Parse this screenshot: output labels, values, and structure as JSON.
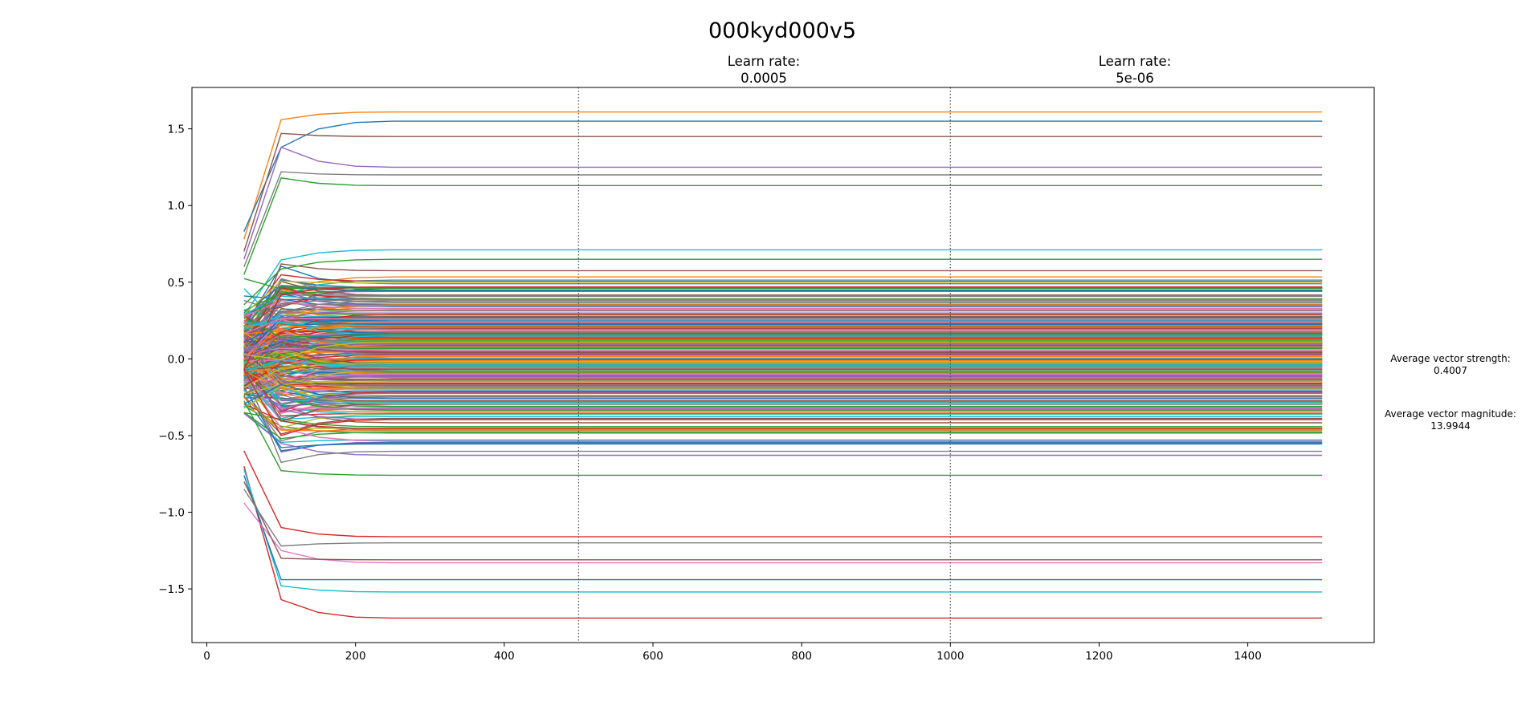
{
  "chart_data": {
    "type": "line",
    "title": "000kyd000v5",
    "xlabel": "",
    "ylabel": "",
    "xlim": [
      -20,
      1570
    ],
    "ylim": [
      -1.85,
      1.77
    ],
    "x_ticks": [
      0,
      200,
      400,
      600,
      800,
      1000,
      1200,
      1400
    ],
    "x_tick_labels": [
      "0",
      "200",
      "400",
      "600",
      "800",
      "1000",
      "1200",
      "1400"
    ],
    "y_ticks": [
      1.5,
      1.0,
      0.5,
      0.0,
      -0.5,
      -1.0,
      -1.5
    ],
    "y_tick_labels": [
      "1.5",
      "1.0",
      "0.5",
      "0.0",
      "−0.5",
      "−1.0",
      "−1.5"
    ],
    "grid": false,
    "legend": "none",
    "x": [
      50,
      100,
      150,
      200,
      250,
      300,
      350,
      400,
      450,
      500,
      550,
      600,
      650,
      700,
      750,
      800,
      850,
      900,
      950,
      1000,
      1050,
      1100,
      1150,
      1200,
      1250,
      1300,
      1350,
      1400,
      1450,
      1500
    ],
    "series_count": 300,
    "colors": [
      "#1f77b4",
      "#ff7f0e",
      "#2ca02c",
      "#d62728",
      "#9467bd",
      "#8c564b",
      "#e377c2",
      "#7f7f7f",
      "#bcbd22",
      "#17becf"
    ],
    "highlighted_series": [
      {
        "start": 0.78,
        "peak": 1.56,
        "final": 1.61,
        "color": "#ff7f0e"
      },
      {
        "start": 0.83,
        "peak": 1.38,
        "final": 1.55,
        "color": "#1f77b4"
      },
      {
        "start": 0.7,
        "peak": 1.47,
        "final": 1.45,
        "color": "#8c564b"
      },
      {
        "start": 0.65,
        "peak": 1.38,
        "final": 1.25,
        "color": "#9467bd"
      },
      {
        "start": 0.6,
        "peak": 1.22,
        "final": 1.2,
        "color": "#7f7f7f"
      },
      {
        "start": 0.55,
        "peak": 1.18,
        "final": 1.13,
        "color": "#2ca02c"
      },
      {
        "start": -0.7,
        "peak": -1.57,
        "final": -1.69,
        "color": "#d62728"
      },
      {
        "start": -0.72,
        "peak": -1.48,
        "final": -1.52,
        "color": "#17becf"
      },
      {
        "start": -0.76,
        "peak": -1.44,
        "final": -1.44,
        "color": "#1f77b4"
      },
      {
        "start": -0.94,
        "peak": -1.25,
        "final": -1.33,
        "color": "#e377c2"
      },
      {
        "start": -0.8,
        "peak": -1.3,
        "final": -1.31,
        "color": "#8c564b"
      },
      {
        "start": -0.85,
        "peak": -1.22,
        "final": -1.2,
        "color": "#7f7f7f"
      },
      {
        "start": -0.6,
        "peak": -1.1,
        "final": -1.16,
        "color": "#d62728"
      }
    ],
    "vlines": [
      {
        "x": 500,
        "label_line1": "Learn rate:",
        "label_line2": "0.0005"
      },
      {
        "x": 1000,
        "label_line1": "Learn rate:",
        "label_line2": "5e-06"
      }
    ],
    "side_annotations": [
      {
        "line1": "Average vector strength:",
        "line2": "0.4007"
      },
      {
        "line1": "Average vector magnitude:",
        "line2": "13.9944"
      }
    ]
  }
}
